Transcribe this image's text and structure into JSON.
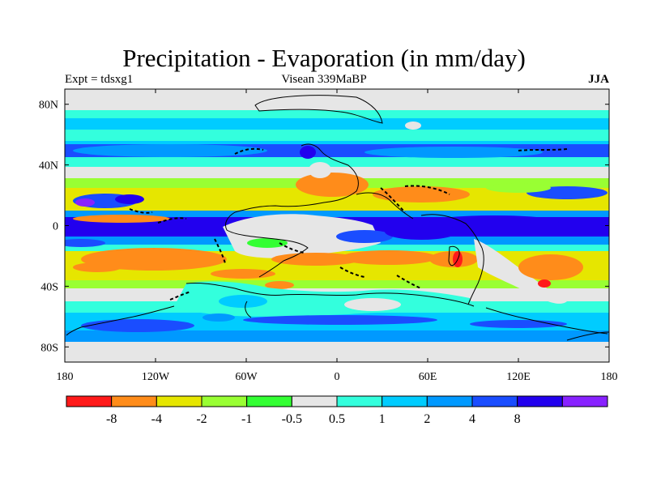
{
  "title": "Precipitation - Evaporation (in mm/day)",
  "subtitle_left": "Expt = tdsxg1",
  "subtitle_center": "Visean 339MaBP",
  "subtitle_right": "JJA",
  "lat_labels": [
    {
      "value": 80,
      "text": "80N"
    },
    {
      "value": 40,
      "text": "40N"
    },
    {
      "value": 0,
      "text": "0"
    },
    {
      "value": -40,
      "text": "40S"
    },
    {
      "value": -80,
      "text": "80S"
    }
  ],
  "lon_labels": [
    {
      "value": -180,
      "text": "180"
    },
    {
      "value": -120,
      "text": "120W"
    },
    {
      "value": -60,
      "text": "60W"
    },
    {
      "value": 0,
      "text": "0"
    },
    {
      "value": 60,
      "text": "60E"
    },
    {
      "value": 120,
      "text": "120E"
    },
    {
      "value": 180,
      "text": "180"
    }
  ],
  "colorbar": {
    "colors": [
      "#ff1a1a",
      "#ff8c1a",
      "#e6e600",
      "#99ff33",
      "#33ff33",
      "#e6e6e6",
      "#33ffdd",
      "#00ccff",
      "#0099ff",
      "#1a4dff",
      "#2200ee",
      "#8822ff"
    ],
    "labels": [
      "-8",
      "-4",
      "-2",
      "-1",
      "-0.5",
      "0.5",
      "1",
      "2",
      "4",
      "8"
    ]
  }
}
